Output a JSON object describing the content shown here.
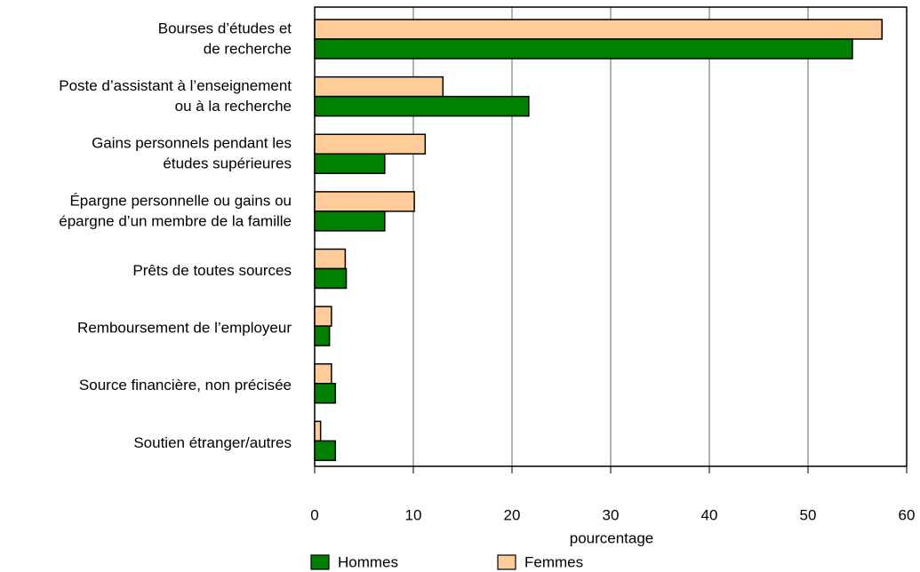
{
  "chart_data": {
    "type": "hbar",
    "categories": [
      [
        "Bourses d’études et",
        "de recherche"
      ],
      [
        "Poste d’assistant à l’enseignement",
        "ou à la recherche"
      ],
      [
        "Gains personnels pendant les",
        "études supérieures"
      ],
      [
        "Épargne personnelle ou gains ou",
        "épargne d’un membre de la famille"
      ],
      [
        "Prêts de toutes sources"
      ],
      [
        "Remboursement de l’employeur"
      ],
      [
        "Source financière, non précisée"
      ],
      [
        "Soutien étranger/autres"
      ]
    ],
    "series": [
      {
        "name": "Femmes",
        "color": "#ffcc99",
        "values": [
          57.5,
          13,
          11.2,
          10.1,
          3.1,
          1.7,
          1.7,
          0.6
        ]
      },
      {
        "name": "Hommes",
        "color": "#008000",
        "values": [
          54.5,
          21.7,
          7.1,
          7.1,
          3.2,
          1.5,
          2.1,
          2.1
        ]
      }
    ],
    "xlabel": "pourcentage",
    "xlim": [
      0,
      60
    ],
    "xticks": [
      0,
      10,
      20,
      30,
      40,
      50,
      60
    ],
    "grid": true,
    "legend_order": [
      "Hommes",
      "Femmes"
    ]
  }
}
